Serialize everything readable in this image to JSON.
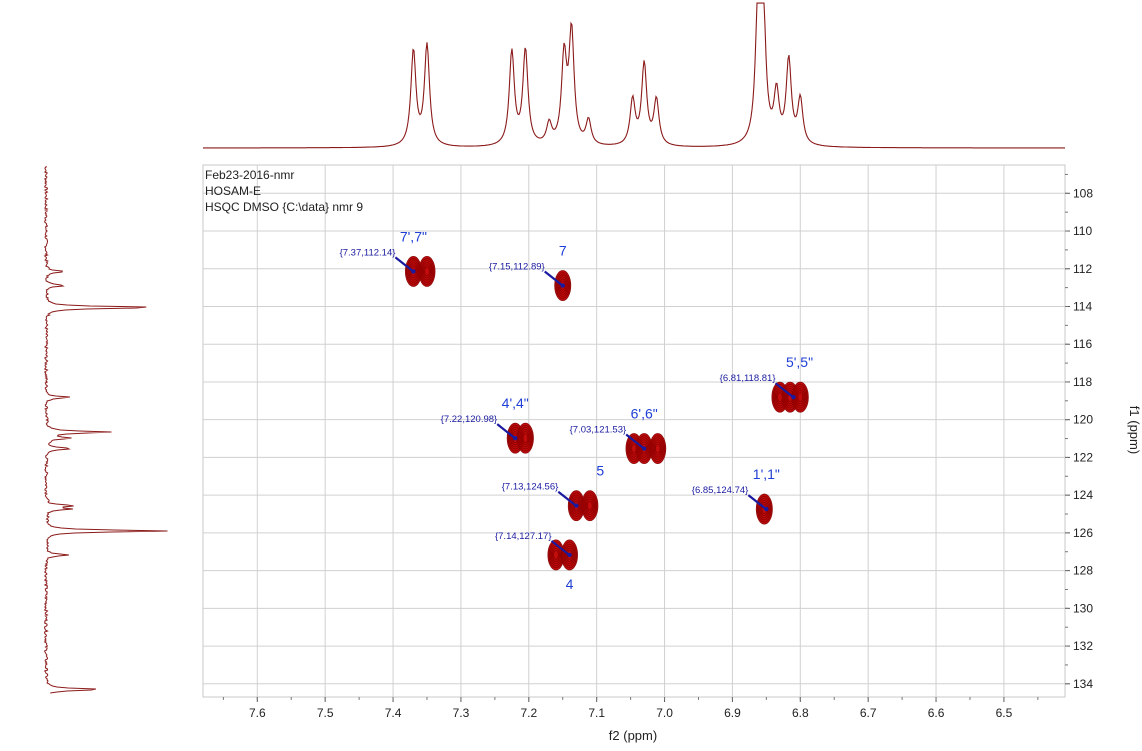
{
  "chart_data": {
    "type": "scatter",
    "subtype": "2D HSQC NMR contour plot with projections",
    "info_lines": [
      "Feb23-2016-nmr",
      "HOSAM-E",
      "HSQC DMSO {C:\\data} nmr 9"
    ],
    "xlabel": "f2 (ppm)",
    "ylabel": "f1 (ppm)",
    "xlim": [
      7.68,
      6.41
    ],
    "ylim": [
      106.5,
      134.7
    ],
    "x_ticks": [
      7.6,
      7.5,
      7.4,
      7.3,
      7.2,
      7.1,
      7.0,
      6.9,
      6.8,
      6.7,
      6.6,
      6.5
    ],
    "x_tick_labels": [
      "7.6",
      "7.5",
      "7.4",
      "7.3",
      "7.2",
      "7.1",
      "7.0",
      "6.9",
      "6.8",
      "6.7",
      "6.6",
      "6.5"
    ],
    "y_ticks": [
      108,
      110,
      112,
      114,
      116,
      118,
      120,
      122,
      124,
      126,
      128,
      130,
      132,
      134
    ],
    "y_tick_labels": [
      "108",
      "110",
      "112",
      "114",
      "116",
      "118",
      "120",
      "122",
      "124",
      "126",
      "128",
      "130",
      "132",
      "134"
    ],
    "grid": true,
    "colors": {
      "contour": "#c00000",
      "contour_edge": "#8b0000",
      "annotation": "#1a1aa0",
      "label": "#1f3fd6",
      "spectrum": "#8b1a1a",
      "grid": "#d0d0d0"
    },
    "peaks": [
      {
        "label": "7',7\"",
        "annotation": "{7.37,112.14}",
        "x": 7.37,
        "y": 112.14,
        "blobs": [
          7.37,
          7.35
        ]
      },
      {
        "label": "7",
        "annotation": "{7.15,112.89}",
        "x": 7.15,
        "y": 112.89,
        "blobs": [
          7.15
        ]
      },
      {
        "label": "5',5\"",
        "annotation": "{6.81,118.81}",
        "x": 6.81,
        "y": 118.81,
        "blobs": [
          6.83,
          6.815,
          6.8
        ]
      },
      {
        "label": "4',4\"",
        "annotation": "{7.22,120.98}",
        "x": 7.22,
        "y": 120.98,
        "blobs": [
          7.22,
          7.205
        ]
      },
      {
        "label": "6',6\"",
        "annotation": "{7.03,121.53}",
        "x": 7.03,
        "y": 121.53,
        "blobs": [
          7.045,
          7.03,
          7.01
        ]
      },
      {
        "label": "5",
        "annotation": "{7.13,124.56}",
        "x": 7.13,
        "y": 124.56,
        "blobs": [
          7.13,
          7.11
        ]
      },
      {
        "label": "1',1\"",
        "annotation": "{6.85,124.74}",
        "x": 6.85,
        "y": 124.74,
        "blobs": [
          6.853
        ]
      },
      {
        "label": "4",
        "annotation": "{7.14,127.17}",
        "x": 7.14,
        "y": 127.17,
        "blobs": [
          7.16,
          7.14
        ]
      }
    ],
    "h_projection_peaks": [
      {
        "x": 7.37,
        "h": 0.69
      },
      {
        "x": 7.35,
        "h": 0.73
      },
      {
        "x": 7.225,
        "h": 0.68
      },
      {
        "x": 7.205,
        "h": 0.69
      },
      {
        "x": 7.17,
        "h": 0.15
      },
      {
        "x": 7.148,
        "h": 0.63
      },
      {
        "x": 7.137,
        "h": 0.81
      },
      {
        "x": 7.112,
        "h": 0.18
      },
      {
        "x": 7.047,
        "h": 0.33
      },
      {
        "x": 7.03,
        "h": 0.59
      },
      {
        "x": 7.012,
        "h": 0.33
      },
      {
        "x": 6.862,
        "h": 1.0
      },
      {
        "x": 6.855,
        "h": 0.98
      },
      {
        "x": 6.835,
        "h": 0.36
      },
      {
        "x": 6.817,
        "h": 0.61
      },
      {
        "x": 6.8,
        "h": 0.33
      }
    ],
    "v_projection_peaks": [
      {
        "y": 112.14,
        "h": 0.16
      },
      {
        "y": 112.89,
        "h": 0.16
      },
      {
        "y": 114.05,
        "h": 0.95
      },
      {
        "y": 118.81,
        "h": 0.2
      },
      {
        "y": 120.66,
        "h": 0.55
      },
      {
        "y": 120.98,
        "h": 0.2
      },
      {
        "y": 121.53,
        "h": 0.22
      },
      {
        "y": 124.56,
        "h": 0.21
      },
      {
        "y": 124.74,
        "h": 0.19
      },
      {
        "y": 125.9,
        "h": 1.0
      },
      {
        "y": 127.17,
        "h": 0.19
      },
      {
        "y": 134.3,
        "h": 0.48
      }
    ]
  }
}
